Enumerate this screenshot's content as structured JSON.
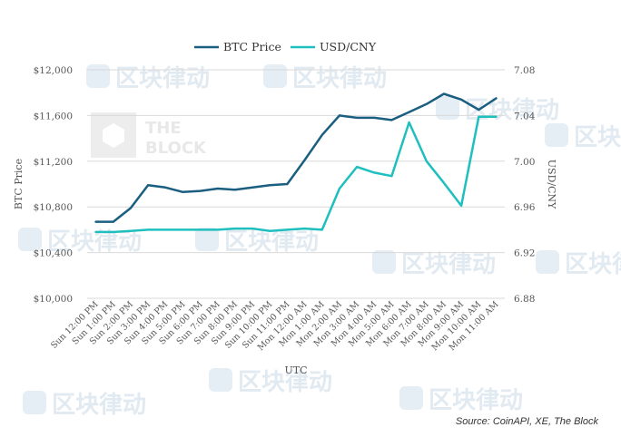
{
  "chart_data": {
    "type": "line",
    "title": "",
    "x_label": "UTC",
    "y_label_left": "BTC Price",
    "y_label_right": "USD/CNY",
    "categories": [
      "Sun 12:00 PM",
      "Sun 1:00 PM",
      "Sun 2:00 PM",
      "Sun 3:00 PM",
      "Sun 4:00 PM",
      "Sun 5:00 PM",
      "Sun 6:00 PM",
      "Sun 7:00 PM",
      "Sun 8:00 PM",
      "Sun 9:00 PM",
      "Sun 10:00 PM",
      "Sun 11:00 PM",
      "Mon 12:00 AM",
      "Mon 1:00 AM",
      "Mon 2:00 AM",
      "Mon 3:00 AM",
      "Mon 4:00 AM",
      "Mon 5:00 AM",
      "Mon 6:00 AM",
      "Mon 7:00 AM",
      "Mon 8:00 AM",
      "Mon 9:00 AM",
      "Mon 10:00 AM",
      "Mon 11:00 AM"
    ],
    "left_axis": {
      "min": 10000,
      "max": 12000,
      "ticks": [
        "$10,000",
        "$10,400",
        "$10,800",
        "$11,200",
        "$11,600",
        "$12,000"
      ],
      "tick_values": [
        10000,
        10400,
        10800,
        11200,
        11600,
        12000
      ]
    },
    "right_axis": {
      "min": 6.88,
      "max": 7.08,
      "ticks": [
        "6.88",
        "6.92",
        "6.96",
        "7.00",
        "7.04",
        "7.08"
      ],
      "tick_values": [
        6.88,
        6.92,
        6.96,
        7.0,
        7.04,
        7.08
      ]
    },
    "grid": "horizontal",
    "legend_position": "top",
    "series": [
      {
        "name": "BTC Price",
        "axis": "left",
        "color": "#1a5e80",
        "values": [
          10670,
          10670,
          10790,
          10990,
          10970,
          10930,
          10940,
          10960,
          10950,
          10970,
          10990,
          11000,
          11210,
          11430,
          11600,
          11580,
          11580,
          11560,
          11630,
          11700,
          11790,
          11740,
          11650,
          11750
        ]
      },
      {
        "name": "USD/CNY",
        "axis": "right",
        "color": "#1fbfbf",
        "values": [
          6.938,
          6.938,
          6.939,
          6.94,
          6.94,
          6.94,
          6.94,
          6.94,
          6.941,
          6.941,
          6.939,
          6.94,
          6.941,
          6.94,
          6.976,
          6.995,
          6.99,
          6.987,
          7.034,
          7.0,
          6.981,
          6.961,
          7.039,
          7.039
        ]
      }
    ],
    "source": "Source: CoinAPI, XE, The Block"
  },
  "watermark": {
    "text": "区块律动",
    "block_logo": "THE BLOCK"
  }
}
